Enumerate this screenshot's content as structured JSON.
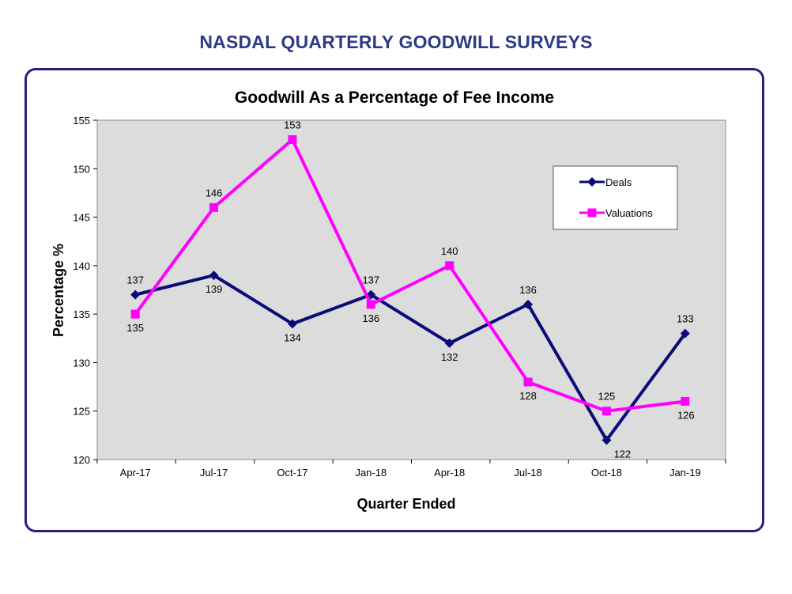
{
  "page_title": "NASDAL QUARTERLY GOODWILL SURVEYS",
  "chart_data": {
    "type": "line",
    "title": "Goodwill As a Percentage of Fee Income",
    "xlabel": "Quarter Ended",
    "ylabel": "Percentage %",
    "categories": [
      "Apr-17",
      "Jul-17",
      "Oct-17",
      "Jan-18",
      "Apr-18",
      "Jul-18",
      "Oct-18",
      "Jan-19"
    ],
    "ylim": [
      120,
      155
    ],
    "yticks": [
      120,
      125,
      130,
      135,
      140,
      145,
      150,
      155
    ],
    "grid": false,
    "legend_position": "top-right",
    "series": [
      {
        "name": "Deals",
        "color": "#0a0a78",
        "marker": "diamond",
        "values": [
          137,
          139,
          134,
          137,
          132,
          136,
          122,
          133
        ]
      },
      {
        "name": "Valuations",
        "color": "#ff00ff",
        "marker": "square",
        "values": [
          135,
          146,
          153,
          136,
          140,
          128,
          125,
          126
        ]
      }
    ]
  }
}
